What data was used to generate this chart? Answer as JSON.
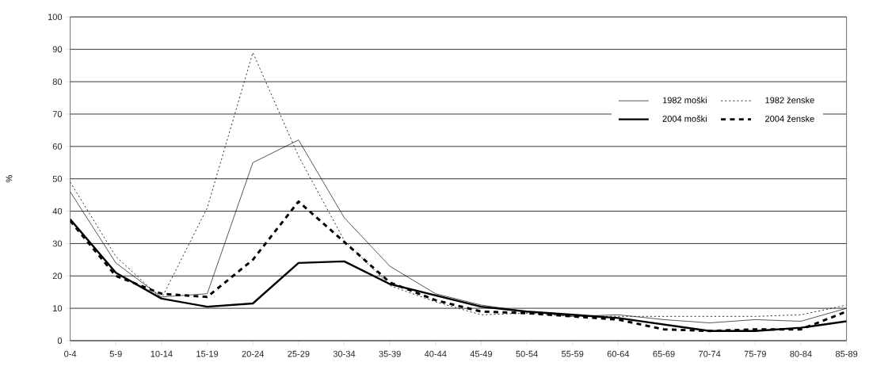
{
  "chart_data": {
    "type": "line",
    "ylabel": "%",
    "categories": [
      "0-4",
      "5-9",
      "10-14",
      "15-19",
      "20-24",
      "25-29",
      "30-34",
      "35-39",
      "40-44",
      "45-49",
      "50-54",
      "55-59",
      "60-64",
      "65-69",
      "70-74",
      "75-79",
      "80-84",
      "85-89"
    ],
    "series": [
      {
        "name": "1982 moški",
        "color": "#000000",
        "line_style": "solid",
        "values": [
          46,
          24,
          13.5,
          14.5,
          55,
          62,
          38,
          23,
          14.5,
          11,
          9,
          7.5,
          8,
          6.5,
          5.5,
          6.5,
          6,
          10
        ]
      },
      {
        "name": "1982 ženske",
        "color": "#000000",
        "line_style": "dotted",
        "values": [
          49,
          26,
          13,
          41,
          89,
          57,
          31,
          17,
          12,
          8,
          8.5,
          7.5,
          7.5,
          7.5,
          7.5,
          7.5,
          8,
          11
        ]
      },
      {
        "name": "2004 moški",
        "color": "#000000",
        "line_style": "solid",
        "values": [
          37.5,
          21,
          13,
          10.5,
          11.5,
          24,
          24.5,
          17.5,
          14,
          10.5,
          9,
          8,
          7,
          5,
          3,
          3,
          4,
          6
        ]
      },
      {
        "name": "2004 ženske",
        "color": "#000000",
        "line_style": "dashed",
        "values": [
          37,
          20,
          14.5,
          13.5,
          25,
          43,
          30.5,
          18,
          12.5,
          9,
          8.5,
          7.5,
          6.5,
          3.5,
          3,
          3.5,
          3.5,
          9
        ]
      }
    ],
    "ylim": [
      0,
      100
    ],
    "yticks": [
      0,
      10,
      20,
      30,
      40,
      50,
      60,
      70,
      80,
      90,
      100
    ],
    "grid": "y",
    "legend": "top right",
    "marker": "none"
  }
}
